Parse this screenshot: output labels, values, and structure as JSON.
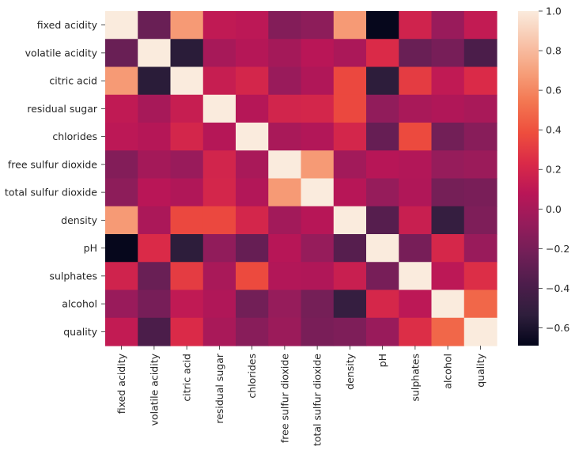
{
  "chart_data": {
    "type": "heatmap",
    "rows": [
      "fixed acidity",
      "volatile acidity",
      "citric acid",
      "residual sugar",
      "chlorides",
      "free sulfur dioxide",
      "total sulfur dioxide",
      "density",
      "pH",
      "sulphates",
      "alcohol",
      "quality"
    ],
    "columns": [
      "fixed acidity",
      "volatile acidity",
      "citric acid",
      "residual sugar",
      "chlorides",
      "free sulfur dioxide",
      "total sulfur dioxide",
      "density",
      "pH",
      "sulphates",
      "alcohol",
      "quality"
    ],
    "values": [
      [
        1.0,
        -0.26,
        0.67,
        0.11,
        0.09,
        -0.15,
        -0.11,
        0.67,
        -0.68,
        0.18,
        -0.06,
        0.12
      ],
      [
        -0.26,
        1.0,
        -0.55,
        0.0,
        0.06,
        -0.01,
        0.08,
        0.02,
        0.23,
        -0.26,
        -0.2,
        -0.39
      ],
      [
        0.67,
        -0.55,
        1.0,
        0.14,
        0.2,
        -0.06,
        0.04,
        0.36,
        -0.54,
        0.31,
        0.11,
        0.23
      ],
      [
        0.11,
        0.0,
        0.14,
        1.0,
        0.06,
        0.19,
        0.2,
        0.36,
        -0.09,
        0.01,
        0.04,
        0.01
      ],
      [
        0.09,
        0.06,
        0.2,
        0.06,
        1.0,
        0.01,
        0.05,
        0.2,
        -0.27,
        0.37,
        -0.22,
        -0.13
      ],
      [
        -0.15,
        -0.01,
        -0.06,
        0.19,
        0.01,
        1.0,
        0.67,
        -0.02,
        0.07,
        0.05,
        -0.07,
        -0.05
      ],
      [
        -0.11,
        0.08,
        0.04,
        0.2,
        0.05,
        0.67,
        1.0,
        0.07,
        -0.07,
        0.04,
        -0.21,
        -0.19
      ],
      [
        0.67,
        0.02,
        0.36,
        0.36,
        0.2,
        -0.02,
        0.07,
        1.0,
        -0.34,
        0.15,
        -0.5,
        -0.17
      ],
      [
        -0.68,
        0.23,
        -0.54,
        -0.09,
        -0.27,
        0.07,
        -0.07,
        -0.34,
        1.0,
        -0.2,
        0.21,
        -0.06
      ],
      [
        0.18,
        -0.26,
        0.31,
        0.01,
        0.37,
        0.05,
        0.04,
        0.15,
        -0.2,
        1.0,
        0.09,
        0.25
      ],
      [
        -0.06,
        -0.2,
        0.11,
        0.04,
        -0.22,
        -0.07,
        -0.21,
        -0.5,
        0.21,
        0.09,
        1.0,
        0.48
      ],
      [
        0.12,
        -0.39,
        0.23,
        0.01,
        -0.13,
        -0.05,
        -0.19,
        -0.17,
        -0.06,
        0.25,
        0.48,
        1.0
      ]
    ],
    "vmin": -0.69,
    "vmax": 1.0,
    "colorbar_ticks": [
      "1.0",
      "0.8",
      "0.6",
      "0.4",
      "0.2",
      "0.0",
      "−0.2",
      "−0.4",
      "−0.6"
    ],
    "colorbar_tick_values": [
      1.0,
      0.8,
      0.6,
      0.4,
      0.2,
      0.0,
      -0.2,
      -0.4,
      -0.6
    ],
    "colormap": "rocket",
    "colormap_stops": [
      "#03051a",
      "#2e1e3c",
      "#4c1d4b",
      "#701f57",
      "#951c5b",
      "#b91657",
      "#da2a48",
      "#ee4e3d",
      "#f37651",
      "#f6a07b",
      "#f8c5ac",
      "#faebdd"
    ]
  }
}
